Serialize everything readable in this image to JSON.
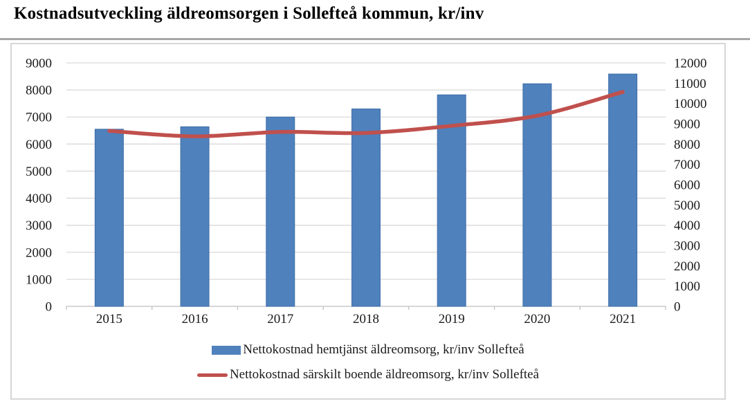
{
  "chart_data": {
    "type": "combo-bar-line",
    "title": "Kostnadsutveckling äldreomsorgen i Sollefteå kommun, kr/inv",
    "categories": [
      "2015",
      "2016",
      "2017",
      "2018",
      "2019",
      "2020",
      "2021"
    ],
    "series": [
      {
        "name": "Nettokostnad hemtjänst äldreomsorg, kr/inv Sollefteå",
        "type": "bar",
        "axis": "left",
        "color": "#4f81bd",
        "values": [
          6550,
          6640,
          7000,
          7300,
          7820,
          8230,
          8590
        ]
      },
      {
        "name": "Nettokostnad särskilt boende äldreomsorg, kr/inv Sollefteå",
        "type": "line",
        "axis": "right",
        "color": "#c0504d",
        "values": [
          8650,
          8380,
          8600,
          8550,
          8900,
          9400,
          10570
        ]
      }
    ],
    "left_axis": {
      "min": 0,
      "max": 9000,
      "step": 1000,
      "ticks": [
        "0",
        "1000",
        "2000",
        "3000",
        "4000",
        "5000",
        "6000",
        "7000",
        "8000",
        "9000"
      ]
    },
    "right_axis": {
      "min": 0,
      "max": 12000,
      "step": 1000,
      "ticks": [
        "0",
        "1000",
        "2000",
        "3000",
        "4000",
        "5000",
        "6000",
        "7000",
        "8000",
        "9000",
        "10000",
        "11000",
        "12000"
      ]
    },
    "grid": true,
    "legend_position": "bottom",
    "colors": {
      "grid": "#d9d9d9",
      "axis_line": "#bfbfbf",
      "tick_text": "#1a1a1a",
      "bar_border": "#3f6ea6"
    }
  }
}
